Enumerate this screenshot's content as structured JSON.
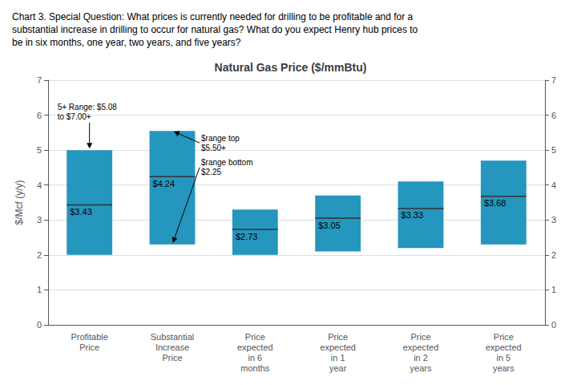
{
  "chart_data": {
    "type": "range_bar",
    "title": "Natural Gas Price ($/mmBtu)",
    "subtitle": [
      "Chart 3. Special Question: What prices is currently needed for drilling to be profitable and for a",
      "substantial increase in drilling to occur for natural gas? What do you expect Henry hub prices to",
      "be in six months, one year, two years, and five years?"
    ],
    "ylabel": "$/Mcf (y/y)",
    "categories": [
      "Profitable\nPrice",
      "Substantial\nIncrease\nPrice",
      "Price\nexpected\nin 6\nmonths",
      "Price\nexpected\nin 1\nyear",
      "Price\nexpected\nin 2\nyears",
      "Price\nexpected\nin 5\nyears"
    ],
    "bar_bottoms": [
      2.0,
      2.3,
      2.0,
      2.1,
      2.2,
      2.3
    ],
    "bar_tops": [
      5.0,
      5.55,
      3.3,
      3.7,
      4.1,
      4.7
    ],
    "averages": [
      3.43,
      4.24,
      2.73,
      3.05,
      3.33,
      3.68
    ],
    "average_labels": [
      "$3.43",
      "$4.24",
      "$2.73",
      "$3.05",
      "$3.33",
      "$3.68"
    ],
    "color": "#2596be",
    "ylim": [
      0,
      7
    ],
    "yticks": [
      0,
      1,
      2,
      3,
      4,
      5,
      6,
      7
    ],
    "grid": true,
    "annotations": [
      {
        "text": "5+ Range: $5.08\nto $7.00+",
        "category": "Profitable\nPrice",
        "y": 5.0
      },
      {
        "text": "$range top\n$5.50+",
        "category": "Substantial\nIncrease\nPrice",
        "y": 5.55
      },
      {
        "text": "$range bottom\n$2.25",
        "category": "Substantial\nIncrease\nPrice",
        "y": 2.3
      }
    ]
  }
}
